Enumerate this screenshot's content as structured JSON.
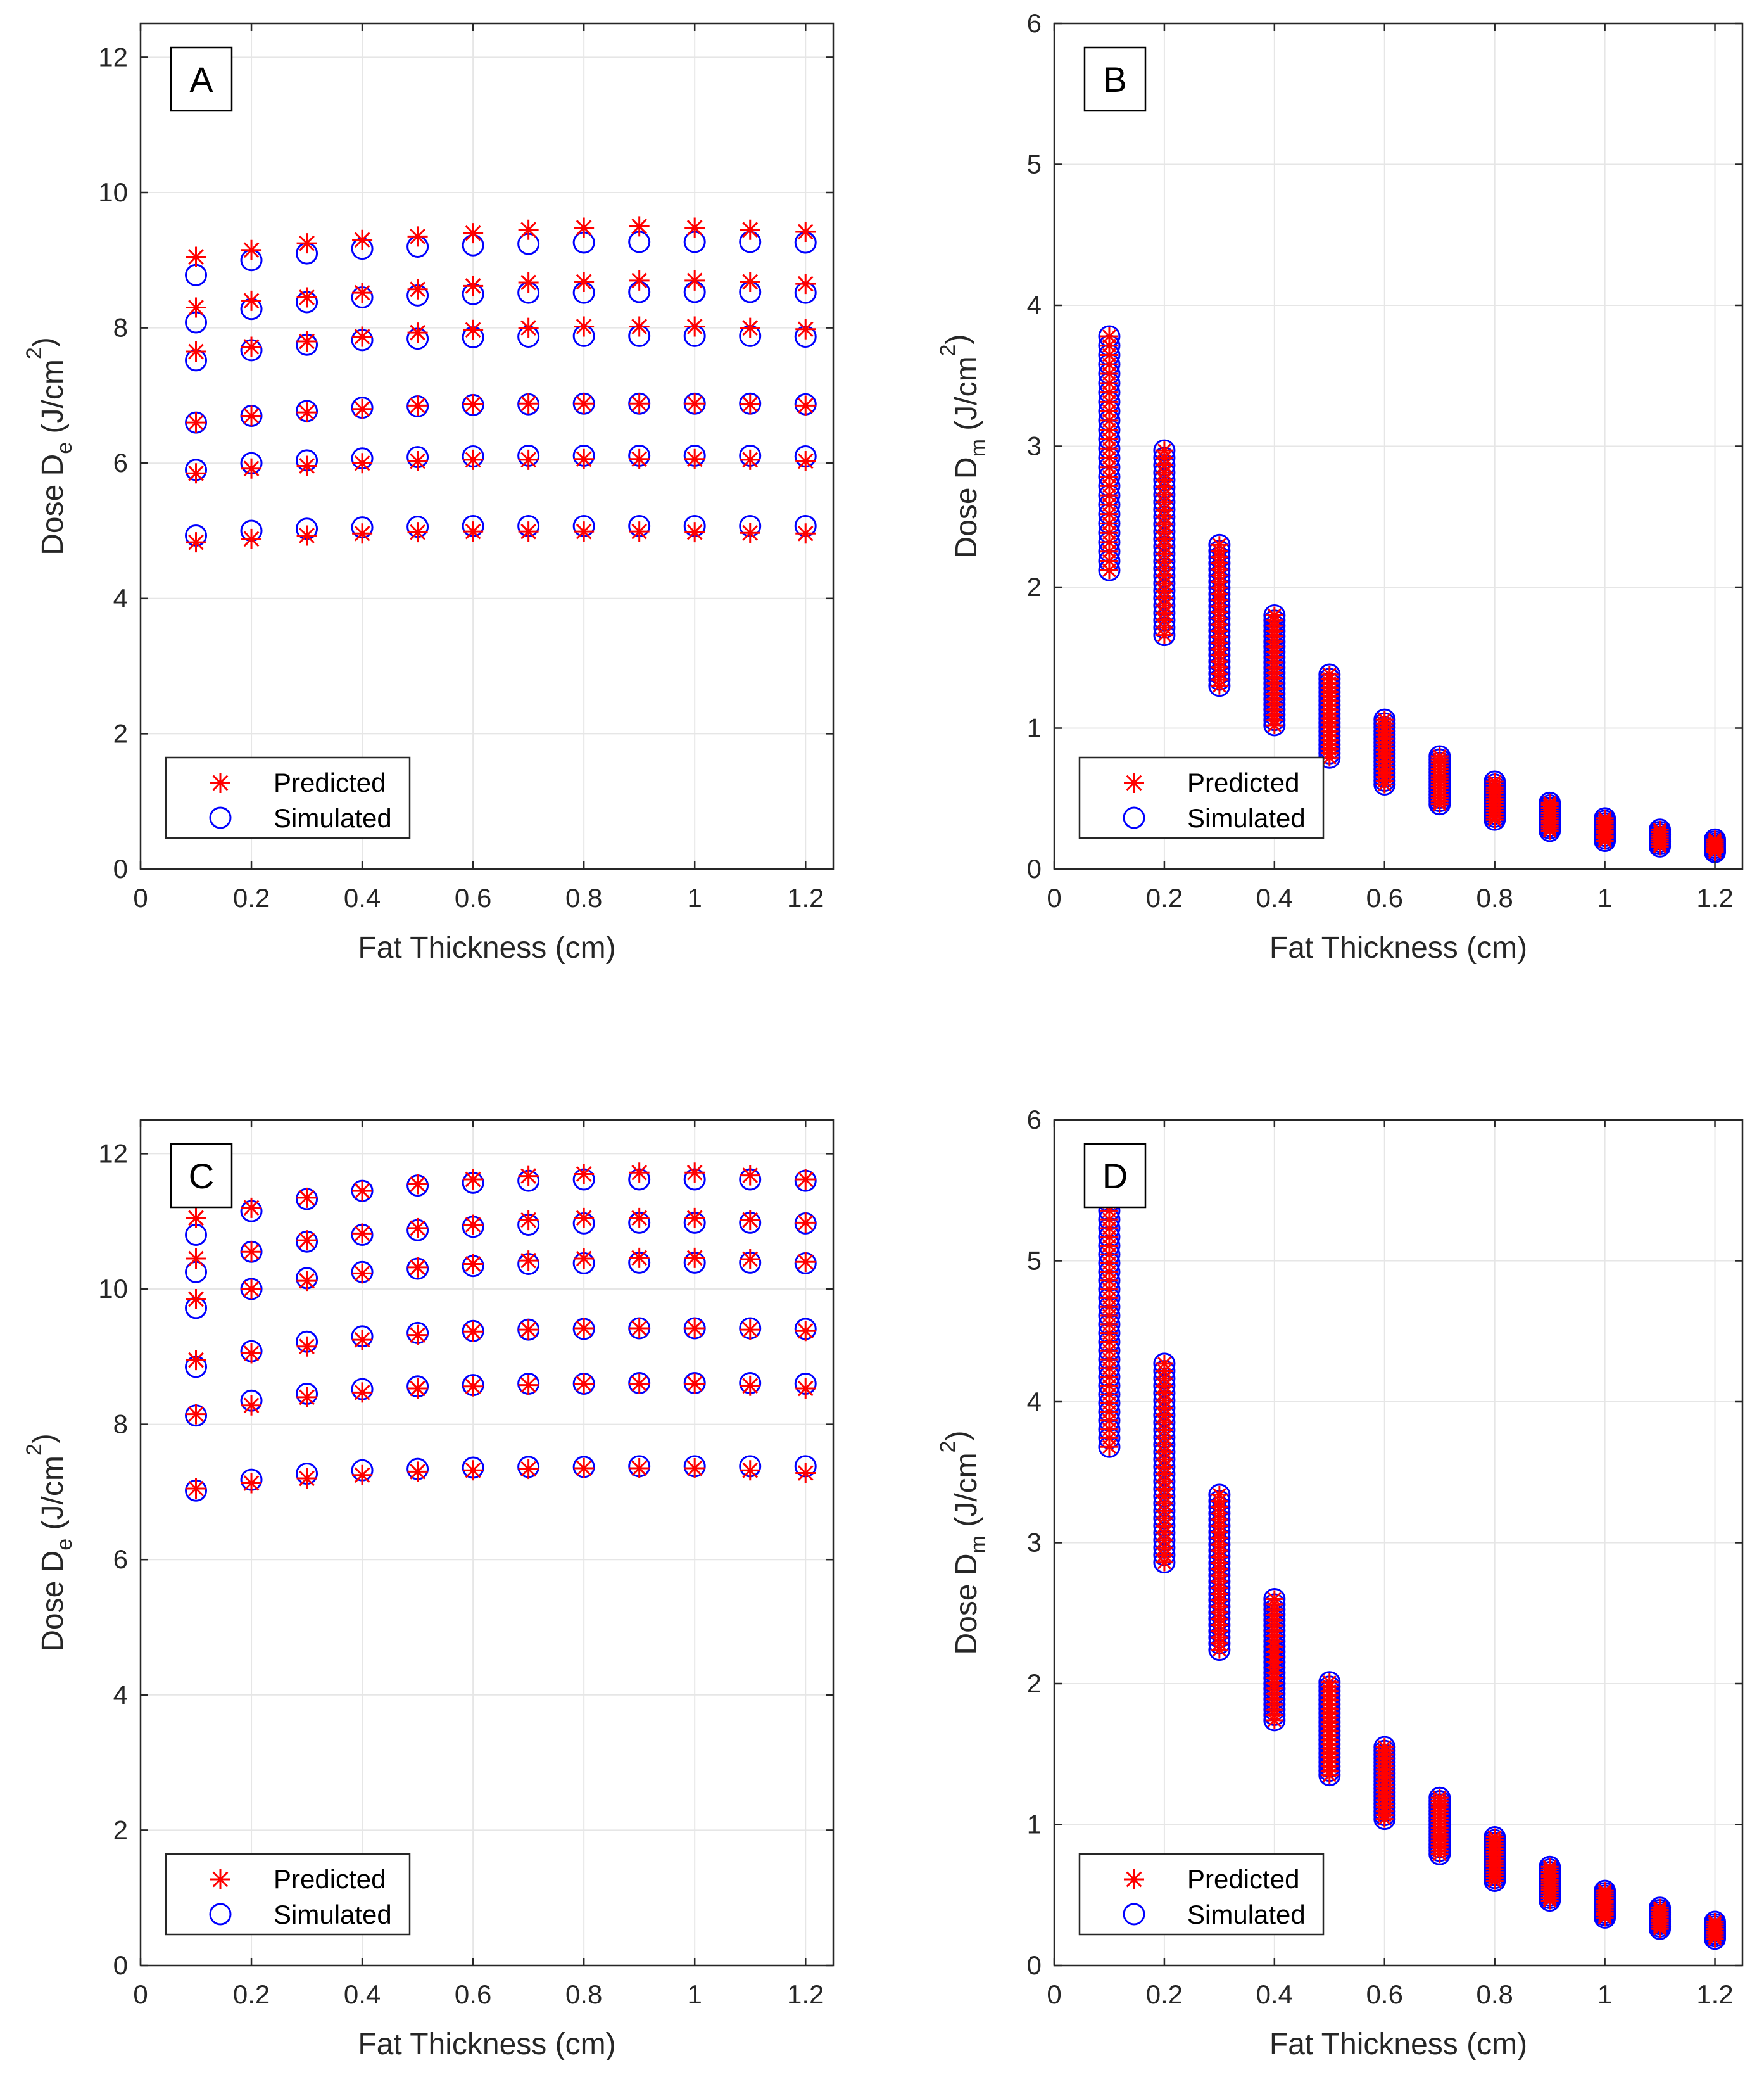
{
  "colors": {
    "predicted": "#ff0000",
    "simulated": "#0000ff",
    "grid": "#e6e6e6",
    "axis": "#262626"
  },
  "chart_data": [
    {
      "type": "scatter",
      "panel_label": "A",
      "xlabel": "Fat Thickness (cm)",
      "ylabel": {
        "main": "Dose D",
        "sub": "e",
        "unit_prefix": " (J/cm",
        "sup": "2",
        "unit_suffix": ")"
      },
      "xlim": [
        0,
        1.25
      ],
      "ylim": [
        0,
        12.5
      ],
      "xticks": [
        0,
        0.2,
        0.4,
        0.6,
        0.8,
        1,
        1.2
      ],
      "xtick_labels": [
        "0",
        "0.2",
        "0.4",
        "0.6",
        "0.8",
        "1",
        "1.2"
      ],
      "yticks": [
        0,
        2,
        4,
        6,
        8,
        10,
        12
      ],
      "ytick_labels": [
        "0",
        "2",
        "4",
        "6",
        "8",
        "10",
        "12"
      ],
      "grid": true,
      "legend": {
        "placement": "bottom-left",
        "entries": [
          "Predicted",
          "Simulated"
        ]
      },
      "x": [
        0.1,
        0.2,
        0.3,
        0.4,
        0.5,
        0.6,
        0.7,
        0.8,
        0.9,
        1.0,
        1.1,
        1.2
      ],
      "series": [
        {
          "name": "Predicted",
          "marker": "asterisk",
          "values": [
            [
              9.05,
              9.15,
              9.25,
              9.3,
              9.35,
              9.4,
              9.45,
              9.48,
              9.5,
              9.48,
              9.45,
              9.42
            ],
            [
              8.3,
              8.4,
              8.45,
              8.52,
              8.57,
              8.62,
              8.67,
              8.68,
              8.7,
              8.7,
              8.68,
              8.65
            ],
            [
              7.65,
              7.72,
              7.8,
              7.87,
              7.93,
              7.97,
              8.0,
              8.02,
              8.02,
              8.02,
              8.0,
              7.98
            ],
            [
              6.6,
              6.7,
              6.75,
              6.8,
              6.85,
              6.87,
              6.88,
              6.88,
              6.88,
              6.88,
              6.87,
              6.85
            ],
            [
              5.85,
              5.92,
              5.96,
              6.0,
              6.03,
              6.05,
              6.05,
              6.06,
              6.06,
              6.06,
              6.05,
              6.03
            ],
            [
              4.83,
              4.88,
              4.93,
              4.96,
              4.98,
              4.99,
              4.99,
              4.99,
              4.99,
              4.98,
              4.97,
              4.96
            ]
          ]
        },
        {
          "name": "Simulated",
          "marker": "circle",
          "values": [
            [
              8.78,
              9.0,
              9.1,
              9.17,
              9.2,
              9.22,
              9.24,
              9.26,
              9.27,
              9.27,
              9.27,
              9.26
            ],
            [
              8.08,
              8.28,
              8.38,
              8.45,
              8.48,
              8.5,
              8.52,
              8.52,
              8.53,
              8.53,
              8.53,
              8.52
            ],
            [
              7.52,
              7.67,
              7.75,
              7.82,
              7.84,
              7.86,
              7.87,
              7.88,
              7.88,
              7.88,
              7.88,
              7.87
            ],
            [
              6.6,
              6.7,
              6.77,
              6.82,
              6.84,
              6.86,
              6.87,
              6.88,
              6.88,
              6.88,
              6.88,
              6.87
            ],
            [
              5.9,
              6.0,
              6.04,
              6.07,
              6.09,
              6.1,
              6.11,
              6.11,
              6.11,
              6.11,
              6.11,
              6.1
            ],
            [
              4.93,
              5.0,
              5.03,
              5.05,
              5.06,
              5.07,
              5.07,
              5.07,
              5.07,
              5.07,
              5.07,
              5.07
            ]
          ]
        }
      ]
    },
    {
      "type": "scatter",
      "panel_label": "B",
      "xlabel": "Fat Thickness (cm)",
      "ylabel": {
        "main": "Dose D",
        "sub": "m",
        "unit_prefix": " (J/cm",
        "sup": "2",
        "unit_suffix": ")"
      },
      "xlim": [
        0,
        1.25
      ],
      "ylim": [
        0,
        6
      ],
      "xticks": [
        0,
        0.2,
        0.4,
        0.6,
        0.8,
        1,
        1.2
      ],
      "xtick_labels": [
        "0",
        "0.2",
        "0.4",
        "0.6",
        "0.8",
        "1",
        "1.2"
      ],
      "yticks": [
        0,
        1,
        2,
        3,
        4,
        5,
        6
      ],
      "ytick_labels": [
        "0",
        "1",
        "2",
        "3",
        "4",
        "5",
        "6"
      ],
      "grid": true,
      "legend": {
        "placement": "bottom-left",
        "entries": [
          "Predicted",
          "Simulated"
        ]
      },
      "x": [
        0.1,
        0.2,
        0.3,
        0.4,
        0.5,
        0.6,
        0.7,
        0.8,
        0.9,
        1.0,
        1.1,
        1.2
      ],
      "columns": [
        {
          "x": 0.1,
          "min": 2.12,
          "max": 3.78,
          "count": 26
        },
        {
          "x": 0.2,
          "min": 1.66,
          "max": 2.97,
          "count": 26
        },
        {
          "x": 0.3,
          "min": 1.3,
          "max": 2.3,
          "count": 24
        },
        {
          "x": 0.4,
          "min": 1.02,
          "max": 1.8,
          "count": 22
        },
        {
          "x": 0.5,
          "min": 0.79,
          "max": 1.38,
          "count": 20
        },
        {
          "x": 0.6,
          "min": 0.6,
          "max": 1.06,
          "count": 18
        },
        {
          "x": 0.7,
          "min": 0.46,
          "max": 0.8,
          "count": 16
        },
        {
          "x": 0.8,
          "min": 0.35,
          "max": 0.62,
          "count": 14
        },
        {
          "x": 0.9,
          "min": 0.27,
          "max": 0.47,
          "count": 12
        },
        {
          "x": 1.0,
          "min": 0.2,
          "max": 0.36,
          "count": 10
        },
        {
          "x": 1.1,
          "min": 0.16,
          "max": 0.28,
          "count": 8
        },
        {
          "x": 1.2,
          "min": 0.12,
          "max": 0.21,
          "count": 7
        }
      ]
    },
    {
      "type": "scatter",
      "panel_label": "C",
      "xlabel": "Fat Thickness (cm)",
      "ylabel": {
        "main": "Dose D",
        "sub": "e",
        "unit_prefix": " (J/cm",
        "sup": "2",
        "unit_suffix": ")"
      },
      "xlim": [
        0,
        1.25
      ],
      "ylim": [
        0,
        12.5
      ],
      "xticks": [
        0,
        0.2,
        0.4,
        0.6,
        0.8,
        1,
        1.2
      ],
      "xtick_labels": [
        "0",
        "0.2",
        "0.4",
        "0.6",
        "0.8",
        "1",
        "1.2"
      ],
      "yticks": [
        0,
        2,
        4,
        6,
        8,
        10,
        12
      ],
      "ytick_labels": [
        "0",
        "2",
        "4",
        "6",
        "8",
        "10",
        "12"
      ],
      "grid": true,
      "legend": {
        "placement": "bottom-left",
        "entries": [
          "Predicted",
          "Simulated"
        ]
      },
      "x": [
        0.1,
        0.2,
        0.3,
        0.4,
        0.5,
        0.6,
        0.7,
        0.8,
        0.9,
        1.0,
        1.1,
        1.2
      ],
      "series": [
        {
          "name": "Predicted",
          "marker": "asterisk",
          "values": [
            [
              11.05,
              11.2,
              11.35,
              11.45,
              11.55,
              11.62,
              11.67,
              11.7,
              11.72,
              11.72,
              11.68,
              11.62
            ],
            [
              10.45,
              10.55,
              10.72,
              10.82,
              10.9,
              10.95,
              11.02,
              11.05,
              11.05,
              11.05,
              11.02,
              10.98
            ],
            [
              9.85,
              10.0,
              10.12,
              10.23,
              10.32,
              10.37,
              10.42,
              10.45,
              10.46,
              10.46,
              10.44,
              10.4
            ],
            [
              8.95,
              9.05,
              9.15,
              9.25,
              9.32,
              9.37,
              9.4,
              9.42,
              9.42,
              9.42,
              9.4,
              9.38
            ],
            [
              8.15,
              8.28,
              8.4,
              8.47,
              8.53,
              8.56,
              8.58,
              8.6,
              8.6,
              8.6,
              8.57,
              8.53
            ],
            [
              7.05,
              7.13,
              7.2,
              7.25,
              7.3,
              7.32,
              7.34,
              7.35,
              7.35,
              7.35,
              7.32,
              7.28
            ]
          ]
        },
        {
          "name": "Simulated",
          "marker": "circle",
          "values": [
            [
              10.8,
              11.15,
              11.33,
              11.45,
              11.53,
              11.57,
              11.6,
              11.62,
              11.62,
              11.62,
              11.62,
              11.6
            ],
            [
              10.25,
              10.55,
              10.7,
              10.8,
              10.87,
              10.92,
              10.95,
              10.97,
              10.98,
              10.98,
              10.98,
              10.97
            ],
            [
              9.72,
              10.0,
              10.16,
              10.25,
              10.3,
              10.34,
              10.37,
              10.38,
              10.39,
              10.39,
              10.39,
              10.38
            ],
            [
              8.85,
              9.08,
              9.22,
              9.3,
              9.35,
              9.38,
              9.4,
              9.41,
              9.42,
              9.42,
              9.42,
              9.41
            ],
            [
              8.13,
              8.35,
              8.45,
              8.52,
              8.56,
              8.58,
              8.6,
              8.6,
              8.61,
              8.61,
              8.61,
              8.6
            ],
            [
              7.02,
              7.18,
              7.27,
              7.32,
              7.34,
              7.36,
              7.37,
              7.37,
              7.38,
              7.38,
              7.38,
              7.38
            ]
          ]
        }
      ]
    },
    {
      "type": "scatter",
      "panel_label": "D",
      "xlabel": "Fat Thickness (cm)",
      "ylabel": {
        "main": "Dose D",
        "sub": "m",
        "unit_prefix": " (J/cm",
        "sup": "2",
        "unit_suffix": ")"
      },
      "xlim": [
        0,
        1.25
      ],
      "ylim": [
        0,
        6
      ],
      "xticks": [
        0,
        0.2,
        0.4,
        0.6,
        0.8,
        1,
        1.2
      ],
      "xtick_labels": [
        "0",
        "0.2",
        "0.4",
        "0.6",
        "0.8",
        "1",
        "1.2"
      ],
      "yticks": [
        0,
        1,
        2,
        3,
        4,
        5,
        6
      ],
      "ytick_labels": [
        "0",
        "1",
        "2",
        "3",
        "4",
        "5",
        "6"
      ],
      "grid": true,
      "legend": {
        "placement": "bottom-left",
        "entries": [
          "Predicted",
          "Simulated"
        ]
      },
      "x": [
        0.1,
        0.2,
        0.3,
        0.4,
        0.5,
        0.6,
        0.7,
        0.8,
        0.9,
        1.0,
        1.1,
        1.2
      ],
      "columns": [
        {
          "x": 0.1,
          "min": 3.68,
          "max": 5.48,
          "count": 30
        },
        {
          "x": 0.2,
          "min": 2.86,
          "max": 4.27,
          "count": 28
        },
        {
          "x": 0.3,
          "min": 2.24,
          "max": 3.34,
          "count": 26
        },
        {
          "x": 0.4,
          "min": 1.74,
          "max": 2.6,
          "count": 24
        },
        {
          "x": 0.5,
          "min": 1.35,
          "max": 2.01,
          "count": 22
        },
        {
          "x": 0.6,
          "min": 1.04,
          "max": 1.55,
          "count": 20
        },
        {
          "x": 0.7,
          "min": 0.79,
          "max": 1.19,
          "count": 18
        },
        {
          "x": 0.8,
          "min": 0.6,
          "max": 0.91,
          "count": 16
        },
        {
          "x": 0.9,
          "min": 0.46,
          "max": 0.7,
          "count": 14
        },
        {
          "x": 1.0,
          "min": 0.34,
          "max": 0.53,
          "count": 12
        },
        {
          "x": 1.1,
          "min": 0.26,
          "max": 0.41,
          "count": 10
        },
        {
          "x": 1.2,
          "min": 0.19,
          "max": 0.31,
          "count": 8
        }
      ]
    }
  ]
}
